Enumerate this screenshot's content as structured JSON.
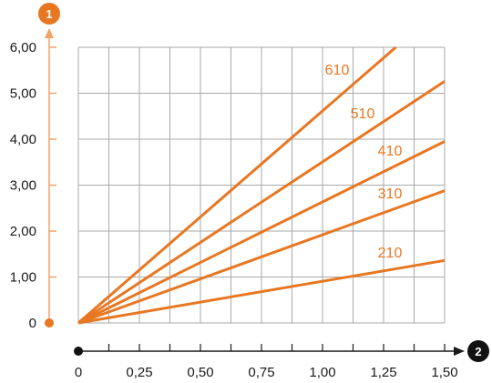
{
  "chart_data": {
    "type": "line",
    "title": "",
    "xlabel": "",
    "ylabel": "",
    "axis_badges": {
      "y": "1",
      "x": "2"
    },
    "x_ticks": [
      "0",
      "0,25",
      "0,50",
      "0,75",
      "1,00",
      "1,25",
      "1,50"
    ],
    "y_ticks": [
      "0",
      "1,00",
      "2,00",
      "3,00",
      "4,00",
      "5,00",
      "6,00"
    ],
    "xlim": [
      0,
      1.5
    ],
    "ylim": [
      0,
      6
    ],
    "grid": true,
    "series": [
      {
        "name": "610",
        "points": [
          [
            0,
            0
          ],
          [
            1.3,
            6.0
          ]
        ]
      },
      {
        "name": "510",
        "points": [
          [
            0,
            0
          ],
          [
            1.5,
            5.26
          ]
        ]
      },
      {
        "name": "410",
        "points": [
          [
            0,
            0
          ],
          [
            1.5,
            3.95
          ]
        ]
      },
      {
        "name": "310",
        "points": [
          [
            0,
            0
          ],
          [
            1.5,
            2.88
          ]
        ]
      },
      {
        "name": "210",
        "points": [
          [
            0,
            0
          ],
          [
            1.5,
            1.36
          ]
        ]
      }
    ],
    "colors": {
      "series": "#e87722",
      "axis_y": "#f0a268",
      "axis_x": "#1a1a1a",
      "grid": "#a9a9a9",
      "badge": "#111111"
    }
  }
}
